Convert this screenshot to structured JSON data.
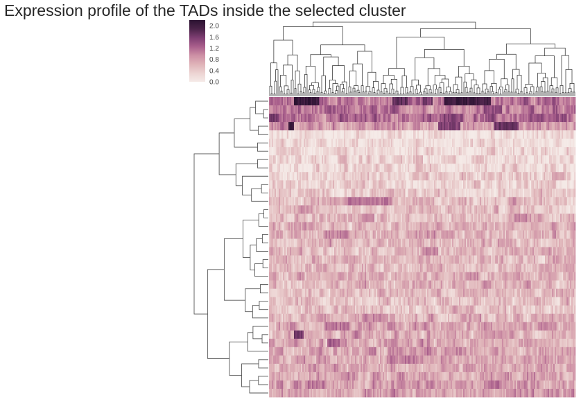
{
  "chart_data": {
    "type": "heatmap",
    "subtype": "clustermap",
    "title": "Expression profile of the TADs inside the selected cluster",
    "xlabel": "",
    "ylabel": "",
    "colorbar": {
      "range": [
        0.0,
        2.2
      ],
      "ticks": [
        "0.0",
        "0.4",
        "0.8",
        "1.2",
        "1.6",
        "2.0"
      ],
      "tick_values": [
        0.0,
        0.4,
        0.8,
        1.2,
        1.6,
        2.0
      ],
      "colors": [
        "#f5ebe8",
        "#ecd3d2",
        "#dfb3b8",
        "#cd8fa5",
        "#a95f8c",
        "#7e3e72",
        "#4b2349",
        "#2b1231"
      ]
    },
    "row_dendrogram": true,
    "column_dendrogram": true,
    "grid": false,
    "rows": [
      {
        "mean": 1.1,
        "hot_segments": [
          [
            0.08,
            0.16,
            2.1
          ],
          [
            0.4,
            0.45,
            1.7
          ],
          [
            0.5,
            0.53,
            1.6
          ],
          [
            0.57,
            0.72,
            2.0
          ]
        ]
      },
      {
        "mean": 1.05,
        "hot_segments": [
          [
            0.7,
            0.76,
            1.4
          ]
        ]
      },
      {
        "mean": 1.15,
        "hot_segments": [
          [
            0.0,
            0.03,
            1.6
          ],
          [
            0.57,
            0.63,
            1.5
          ]
        ]
      },
      {
        "mean": 0.85,
        "hot_segments": [
          [
            0.06,
            0.08,
            2.0
          ],
          [
            0.55,
            0.62,
            1.5
          ],
          [
            0.73,
            0.81,
            1.7
          ]
        ]
      },
      {
        "mean": 0.12,
        "hot_segments": []
      },
      {
        "mean": 0.18,
        "hot_segments": []
      },
      {
        "mean": 0.22,
        "hot_segments": []
      },
      {
        "mean": 0.25,
        "hot_segments": [
          [
            0.47,
            0.5,
            0.6
          ],
          [
            0.67,
            0.7,
            0.55
          ]
        ]
      },
      {
        "mean": 0.3,
        "hot_segments": []
      },
      {
        "mean": 0.35,
        "hot_segments": [
          [
            0.92,
            0.96,
            0.7
          ]
        ]
      },
      {
        "mean": 0.32,
        "hot_segments": []
      },
      {
        "mean": 0.38,
        "hot_segments": []
      },
      {
        "mean": 0.55,
        "hot_segments": [
          [
            0.25,
            0.4,
            1.1
          ]
        ]
      },
      {
        "mean": 0.5,
        "hot_segments": [
          [
            0.1,
            0.14,
            0.9
          ]
        ]
      },
      {
        "mean": 0.58,
        "hot_segments": [
          [
            0.3,
            0.34,
            0.9
          ],
          [
            0.8,
            0.84,
            1.0
          ]
        ]
      },
      {
        "mean": 0.6,
        "hot_segments": []
      },
      {
        "mean": 0.62,
        "hot_segments": [
          [
            0.18,
            0.26,
            1.0
          ]
        ]
      },
      {
        "mean": 0.57,
        "hot_segments": []
      },
      {
        "mean": 0.6,
        "hot_segments": [
          [
            0.5,
            0.55,
            0.95
          ]
        ]
      },
      {
        "mean": 0.58,
        "hot_segments": []
      },
      {
        "mean": 0.55,
        "hot_segments": []
      },
      {
        "mean": 0.62,
        "hot_segments": [
          [
            0.64,
            0.68,
            0.95
          ]
        ]
      },
      {
        "mean": 0.6,
        "hot_segments": []
      },
      {
        "mean": 0.56,
        "hot_segments": []
      },
      {
        "mean": 0.5,
        "hot_segments": []
      },
      {
        "mean": 0.48,
        "hot_segments": []
      },
      {
        "mean": 0.6,
        "hot_segments": [
          [
            0.3,
            0.38,
            1.0
          ]
        ]
      },
      {
        "mean": 0.7,
        "hot_segments": [
          [
            0.18,
            0.26,
            1.1
          ],
          [
            0.88,
            0.94,
            1.0
          ]
        ]
      },
      {
        "mean": 0.65,
        "hot_segments": [
          [
            0.08,
            0.11,
            1.6
          ]
        ]
      },
      {
        "mean": 0.68,
        "hot_segments": [
          [
            0.19,
            0.23,
            1.3
          ]
        ]
      },
      {
        "mean": 0.72,
        "hot_segments": []
      },
      {
        "mean": 0.75,
        "hot_segments": [
          [
            0.43,
            0.48,
            1.1
          ]
        ]
      },
      {
        "mean": 0.7,
        "hot_segments": []
      },
      {
        "mean": 0.73,
        "hot_segments": []
      },
      {
        "mean": 0.8,
        "hot_segments": [
          [
            0.7,
            0.76,
            1.1
          ]
        ]
      },
      {
        "mean": 0.78,
        "hot_segments": []
      }
    ]
  }
}
